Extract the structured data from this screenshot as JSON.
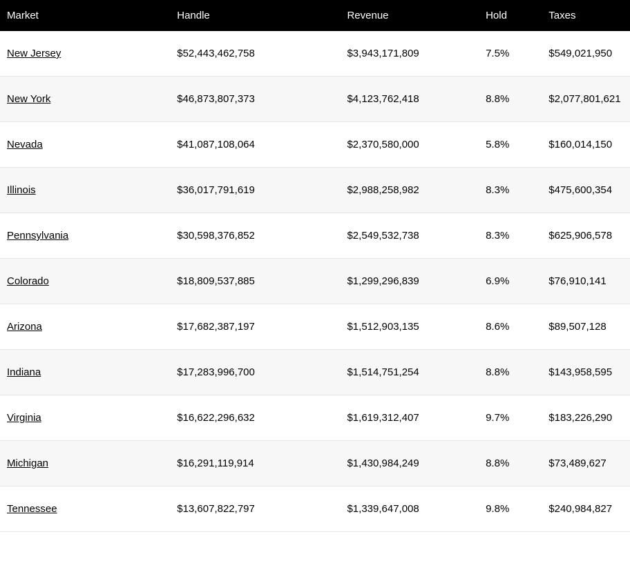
{
  "table": {
    "columns": [
      "Market",
      "Handle",
      "Revenue",
      "Hold",
      "Taxes"
    ],
    "column_classes": [
      "col-market",
      "col-handle",
      "col-revenue",
      "col-hold",
      "col-taxes"
    ],
    "header_bg": "#000000",
    "header_fg": "#ffffff",
    "row_alt_bg": "#f7f7f7",
    "row_border": "#e5e5e5",
    "font_size": 15,
    "rows": [
      {
        "market": "New Jersey",
        "handle": "$52,443,462,758",
        "revenue": "$3,943,171,809",
        "hold": "7.5%",
        "taxes": "$549,021,950"
      },
      {
        "market": "New York",
        "handle": "$46,873,807,373",
        "revenue": "$4,123,762,418",
        "hold": "8.8%",
        "taxes": "$2,077,801,621"
      },
      {
        "market": "Nevada",
        "handle": "$41,087,108,064",
        "revenue": "$2,370,580,000",
        "hold": "5.8%",
        "taxes": "$160,014,150"
      },
      {
        "market": "Illinois",
        "handle": "$36,017,791,619",
        "revenue": "$2,988,258,982",
        "hold": "8.3%",
        "taxes": "$475,600,354"
      },
      {
        "market": "Pennsylvania",
        "handle": "$30,598,376,852",
        "revenue": "$2,549,532,738",
        "hold": "8.3%",
        "taxes": "$625,906,578"
      },
      {
        "market": "Colorado",
        "handle": "$18,809,537,885",
        "revenue": "$1,299,296,839",
        "hold": "6.9%",
        "taxes": "$76,910,141"
      },
      {
        "market": "Arizona",
        "handle": "$17,682,387,197",
        "revenue": "$1,512,903,135",
        "hold": "8.6%",
        "taxes": "$89,507,128"
      },
      {
        "market": "Indiana",
        "handle": "$17,283,996,700",
        "revenue": "$1,514,751,254",
        "hold": "8.8%",
        "taxes": "$143,958,595"
      },
      {
        "market": "Virginia",
        "handle": "$16,622,296,632",
        "revenue": "$1,619,312,407",
        "hold": "9.7%",
        "taxes": "$183,226,290"
      },
      {
        "market": "Michigan",
        "handle": "$16,291,119,914",
        "revenue": "$1,430,984,249",
        "hold": "8.8%",
        "taxes": "$73,489,627"
      },
      {
        "market": "Tennessee",
        "handle": "$13,607,822,797",
        "revenue": "$1,339,647,008",
        "hold": "9.8%",
        "taxes": "$240,984,827"
      }
    ]
  }
}
